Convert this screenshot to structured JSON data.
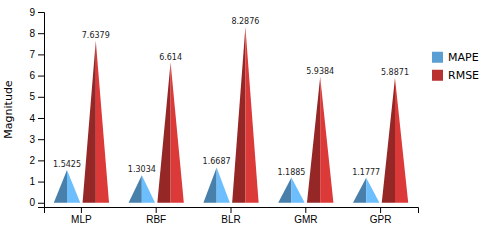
{
  "chart_data": {
    "type": "cone",
    "categories": [
      "MLP",
      "RBF",
      "BLR",
      "GMR",
      "GPR"
    ],
    "series": [
      {
        "name": "MAPE",
        "color": "#5a9fd4",
        "values": [
          1.5425,
          1.3034,
          1.6687,
          1.1885,
          1.1777
        ]
      },
      {
        "name": "RMSE",
        "color": "#b83030",
        "values": [
          7.6379,
          6.614,
          8.2876,
          5.9384,
          5.8871
        ]
      }
    ],
    "y_label": "Magnitude",
    "ylim": [
      -0.2,
      9
    ],
    "yticks": [
      0,
      1,
      2,
      3,
      4,
      5,
      6,
      7,
      8,
      9
    ],
    "grid": false,
    "legend": "right",
    "data_labels": true
  }
}
